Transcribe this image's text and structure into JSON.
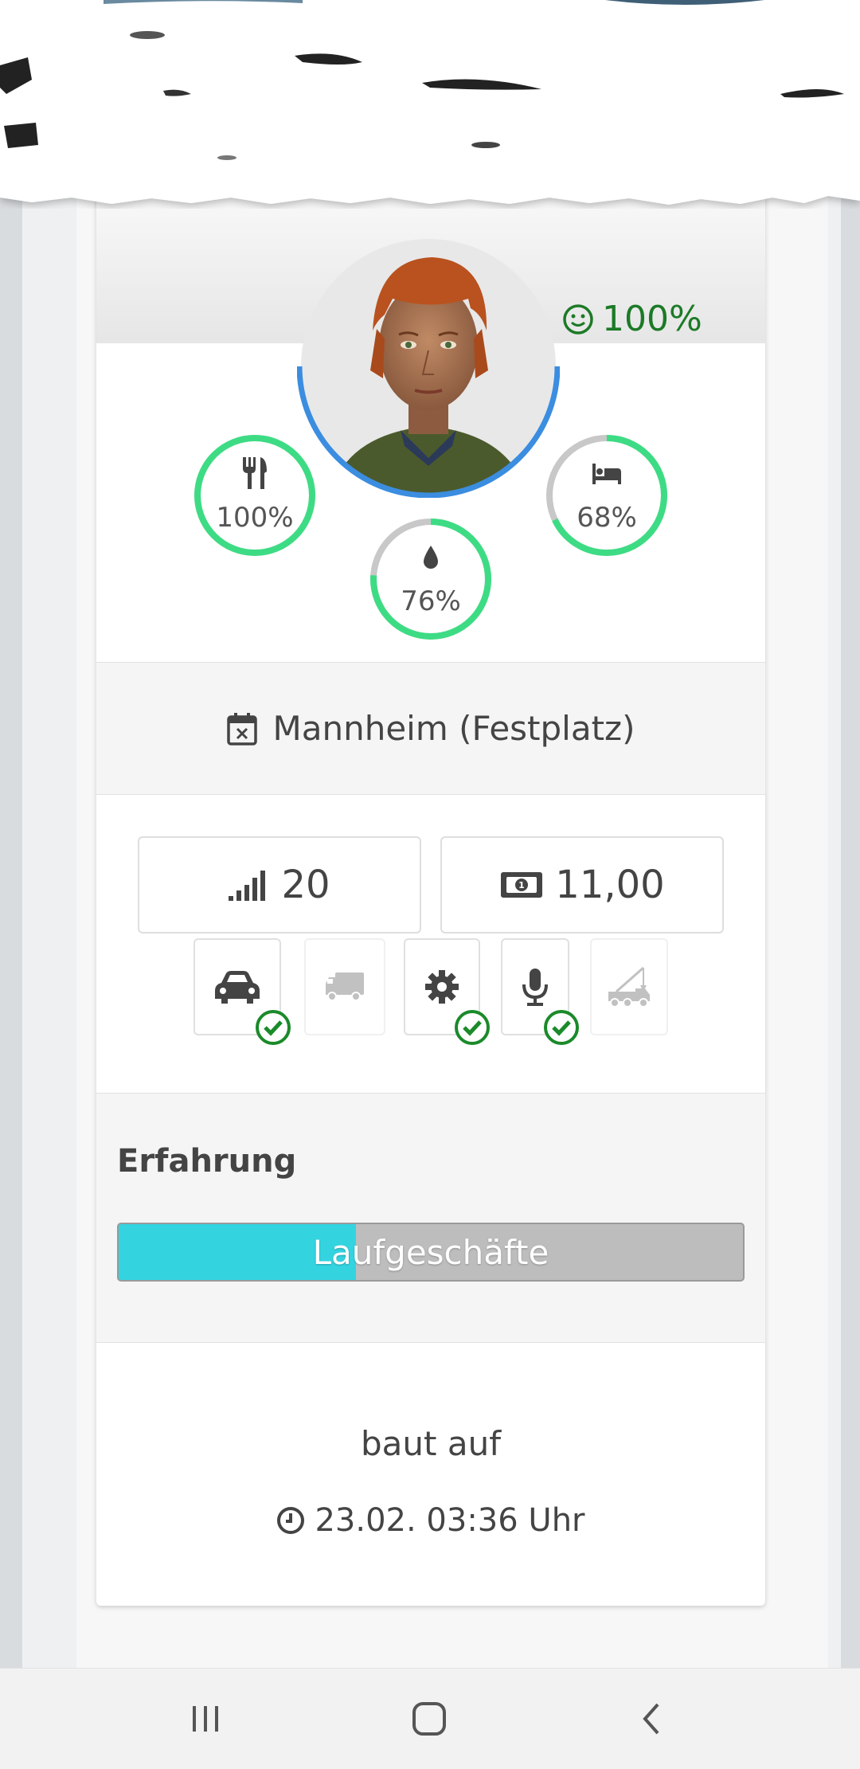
{
  "character": {
    "mood_value": "100%",
    "needs": [
      {
        "name": "hunger",
        "icon": "fork-knife-icon",
        "label": "100%",
        "fraction": 1.0
      },
      {
        "name": "thirst",
        "icon": "water-drop-icon",
        "label": "76%",
        "fraction": 0.76
      },
      {
        "name": "sleep",
        "icon": "bed-icon",
        "label": "68%",
        "fraction": 0.68
      }
    ],
    "mood_icon": "smiley-icon"
  },
  "location": {
    "icon": "calendar-x-icon",
    "text": "Mannheim (Festplatz)"
  },
  "stats": {
    "level": {
      "icon": "signal-bars-icon",
      "value": "20"
    },
    "money": {
      "icon": "banknote-icon",
      "value": "11,00"
    }
  },
  "vehicles": [
    {
      "name": "car",
      "icon": "car-icon",
      "enabled": true,
      "checked": true
    },
    {
      "name": "truck",
      "icon": "truck-icon",
      "enabled": false,
      "checked": false
    },
    {
      "name": "mechanic",
      "icon": "gear-icon",
      "enabled": true,
      "checked": true
    },
    {
      "name": "speaker",
      "icon": "microphone-icon",
      "enabled": true,
      "checked": true
    },
    {
      "name": "crane",
      "icon": "crane-truck-icon",
      "enabled": false,
      "checked": false
    }
  ],
  "experience": {
    "title": "Erfahrung",
    "bar_label": "Laufgeschäfte",
    "progress": 0.38
  },
  "status": {
    "text": "baut auf",
    "time": "23.02. 03:36 Uhr",
    "time_icon": "clock-icon"
  },
  "colors": {
    "need_ring": "#3ddc84",
    "avatar_ring": "#3b8de0",
    "mood_green": "#1c7a26",
    "exp_fill": "#33d4e0",
    "check_green": "#1b8a2a"
  }
}
